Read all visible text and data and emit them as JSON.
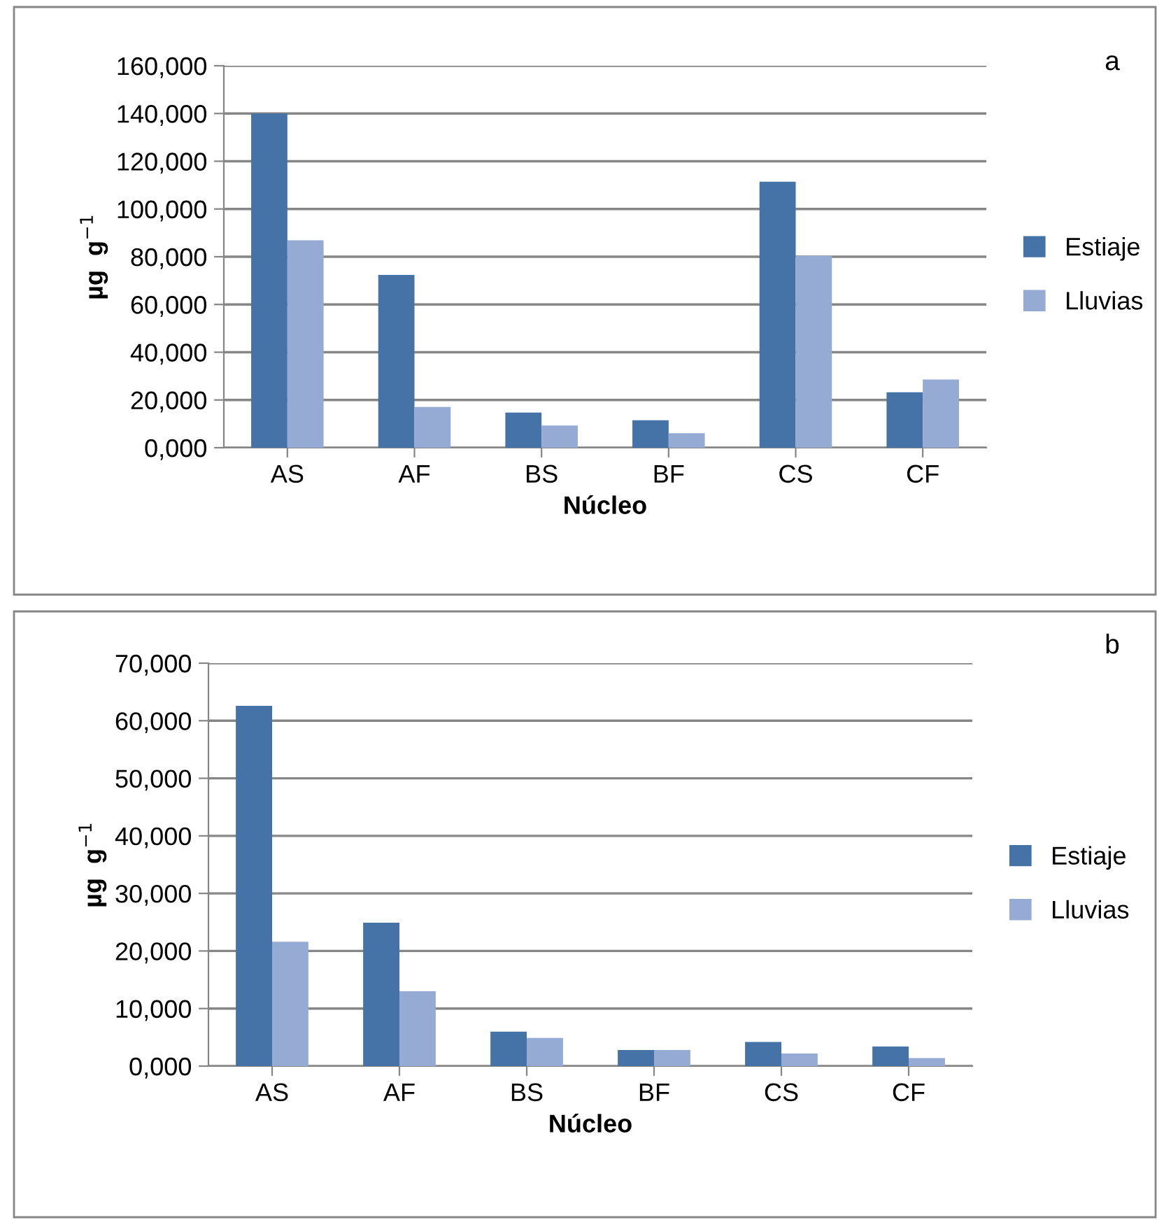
{
  "chart_data": [
    {
      "type": "bar",
      "xlabel": "Núcleo",
      "ylabel": "µg  g$^{−1}$",
      "annotations": [
        "a"
      ],
      "categories": [
        "AS",
        "AF",
        "BS",
        "BF",
        "CS",
        "CF"
      ],
      "series": [
        {
          "name": "Estiaje",
          "color": "#4572a7",
          "values": [
            140,
            72.4,
            14.7,
            11.5,
            111.4,
            23.2
          ]
        },
        {
          "name": "Lluvias",
          "color": "#95abd3",
          "values": [
            86.9,
            17.1,
            9.3,
            6.1,
            80.4,
            28.6
          ]
        }
      ],
      "ylim": [
        0,
        160
      ],
      "yticks": [
        {
          "value": 0,
          "label": "0,000"
        },
        {
          "value": 20,
          "label": "20,000"
        },
        {
          "value": 40,
          "label": "40,000"
        },
        {
          "value": 60,
          "label": "60,000"
        },
        {
          "value": 80,
          "label": "80,000"
        },
        {
          "value": 100,
          "label": "100,000"
        },
        {
          "value": 120,
          "label": "120,000"
        },
        {
          "value": 140,
          "label": "140,000"
        },
        {
          "value": 160,
          "label": "160,000"
        }
      ],
      "grid": "y",
      "legend": "right"
    },
    {
      "type": "bar",
      "xlabel": "Núcleo",
      "ylabel": "µg  g$^{−1}$",
      "annotations": [
        "b"
      ],
      "categories": [
        "AS",
        "AF",
        "BS",
        "BF",
        "CS",
        "CF"
      ],
      "series": [
        {
          "name": "Estiaje",
          "color": "#4572a7",
          "values": [
            62.6,
            24.9,
            6.0,
            2.8,
            4.2,
            3.4
          ]
        },
        {
          "name": "Lluvias",
          "color": "#95abd3",
          "values": [
            21.6,
            13.0,
            4.9,
            2.8,
            2.2,
            1.4
          ]
        }
      ],
      "ylim": [
        0,
        70
      ],
      "yticks": [
        {
          "value": 0,
          "label": "0,000"
        },
        {
          "value": 10,
          "label": "10,000"
        },
        {
          "value": 20,
          "label": "20,000"
        },
        {
          "value": 30,
          "label": "30,000"
        },
        {
          "value": 40,
          "label": "40,000"
        },
        {
          "value": 50,
          "label": "50,000"
        },
        {
          "value": 60,
          "label": "60,000"
        },
        {
          "value": 70,
          "label": "70,000"
        }
      ],
      "grid": "y",
      "legend": "right"
    }
  ]
}
